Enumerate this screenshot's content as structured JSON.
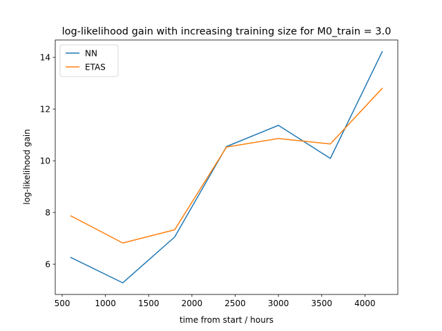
{
  "chart_data": {
    "type": "line",
    "title": "log-likelihood gain with increasing training size for M0_train = 3.0",
    "xlabel": "time from start / hours",
    "ylabel": "log-likelihood gain",
    "xlim": [
      420,
      4380
    ],
    "ylim": [
      4.83,
      14.67
    ],
    "xticks": [
      500,
      1000,
      1500,
      2000,
      2500,
      3000,
      3500,
      4000
    ],
    "yticks": [
      6,
      8,
      10,
      12,
      14
    ],
    "x": [
      600,
      1200,
      1800,
      2400,
      3000,
      3600,
      4200
    ],
    "series": [
      {
        "name": "NN",
        "color": "#1f77b4",
        "values": [
          6.26,
          5.28,
          7.05,
          10.55,
          11.37,
          10.09,
          14.22
        ]
      },
      {
        "name": "ETAS",
        "color": "#ff7f0e",
        "values": [
          7.87,
          6.82,
          7.33,
          10.53,
          10.86,
          10.65,
          12.8
        ]
      }
    ],
    "legend": "top-left",
    "grid": false
  }
}
